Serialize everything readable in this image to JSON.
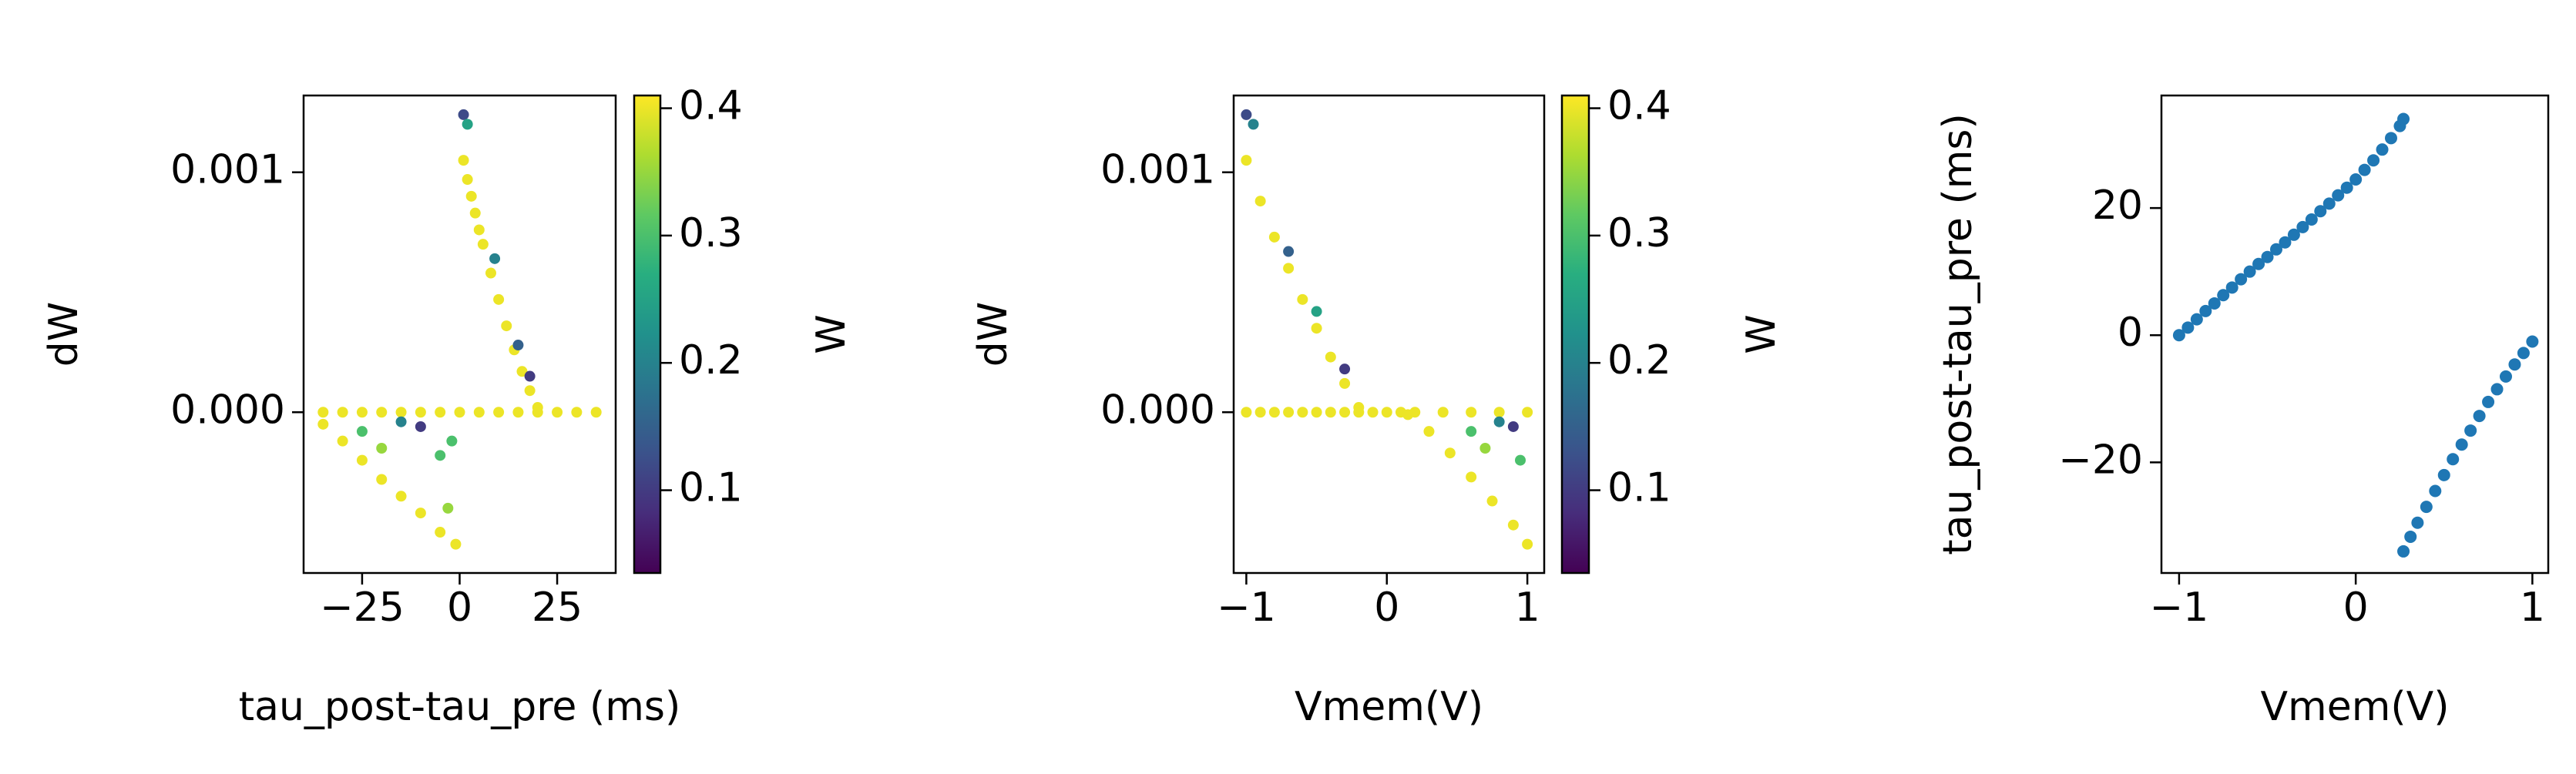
{
  "chart_data": [
    {
      "type": "scatter",
      "xlabel": "tau_post-tau_pre (ms)",
      "ylabel": "dW",
      "xlim": [
        -40,
        40
      ],
      "ylim": [
        -0.00067,
        0.00132
      ],
      "xticks": [
        {
          "value": -25,
          "label": "−25"
        },
        0,
        25
      ],
      "yticks": [
        {
          "value": 0,
          "label": "0.000"
        },
        {
          "value": 0.001,
          "label": "0.001"
        }
      ],
      "x": [
        -35,
        -25,
        -15,
        -5,
        5,
        15,
        25,
        35,
        -30,
        -20,
        -10,
        0,
        10,
        20,
        30,
        1,
        2,
        3,
        4,
        5,
        6,
        8,
        10,
        12,
        14,
        16,
        18,
        20,
        -35,
        -30,
        -25,
        -20,
        -15,
        -10,
        -5,
        -1,
        1,
        2,
        9,
        15,
        18,
        -25,
        -15,
        -10,
        -5,
        -2,
        -20,
        -3
      ],
      "y": [
        0,
        0,
        0,
        0,
        0,
        0,
        0,
        0,
        0,
        0,
        0,
        0,
        0,
        0,
        0,
        0.00105,
        0.00097,
        0.0009,
        0.00083,
        0.00076,
        0.0007,
        0.00058,
        0.00047,
        0.00036,
        0.00026,
        0.00017,
        9e-05,
        2e-05,
        -5e-05,
        -0.00012,
        -0.0002,
        -0.00028,
        -0.00035,
        -0.00042,
        -0.0005,
        -0.00055,
        0.00124,
        0.0012,
        0.00064,
        0.00028,
        0.00015,
        -8e-05,
        -4e-05,
        -6e-05,
        -0.00018,
        -0.00012,
        -0.00015,
        -0.0004
      ],
      "c": [
        0.4,
        0.4,
        0.4,
        0.4,
        0.4,
        0.4,
        0.4,
        0.4,
        0.4,
        0.4,
        0.4,
        0.4,
        0.4,
        0.4,
        0.4,
        0.4,
        0.4,
        0.4,
        0.4,
        0.4,
        0.4,
        0.4,
        0.4,
        0.4,
        0.4,
        0.4,
        0.4,
        0.4,
        0.4,
        0.4,
        0.4,
        0.4,
        0.4,
        0.4,
        0.4,
        0.4,
        0.12,
        0.25,
        0.2,
        0.15,
        0.1,
        0.3,
        0.2,
        0.1,
        0.3,
        0.3,
        0.35,
        0.35
      ],
      "colorbar": {
        "label": "W",
        "colormap": "viridis",
        "clim": [
          0.035,
          0.41
        ],
        "ticks": [
          0.1,
          0.2,
          0.3,
          0.4
        ]
      }
    },
    {
      "type": "scatter",
      "xlabel": "Vmem(V)",
      "ylabel": "dW",
      "xlim": [
        -1.09,
        1.12
      ],
      "ylim": [
        -0.00067,
        0.00132
      ],
      "xticks": [
        {
          "value": -1,
          "label": "−1"
        },
        0,
        1
      ],
      "yticks": [
        {
          "value": 0,
          "label": "0.000"
        },
        {
          "value": 0.001,
          "label": "0.001"
        }
      ],
      "x": [
        -1,
        -0.8,
        -0.6,
        -0.4,
        -0.2,
        0,
        0.2,
        0.4,
        0.6,
        0.8,
        1,
        -0.9,
        -0.7,
        -0.5,
        -0.3,
        -0.1,
        0.1,
        -1,
        -0.9,
        -0.8,
        -0.7,
        -0.6,
        -0.5,
        -0.4,
        -0.3,
        -0.2,
        0.15,
        0.3,
        0.45,
        0.6,
        0.75,
        0.9,
        1,
        -1,
        -0.95,
        -0.7,
        -0.5,
        -0.3,
        0.6,
        0.8,
        0.9,
        0.7,
        0.95
      ],
      "y": [
        0,
        0,
        0,
        0,
        0,
        0,
        0,
        0,
        0,
        0,
        0,
        0,
        0,
        0,
        0,
        0,
        0,
        0.00105,
        0.00088,
        0.00073,
        0.0006,
        0.00047,
        0.00035,
        0.00023,
        0.00012,
        2e-05,
        -1e-05,
        -8e-05,
        -0.00017,
        -0.00027,
        -0.00037,
        -0.00047,
        -0.00055,
        0.00124,
        0.0012,
        0.00067,
        0.00042,
        0.00018,
        -8e-05,
        -4e-05,
        -6e-05,
        -0.00015,
        -0.0002
      ],
      "c": [
        0.4,
        0.4,
        0.4,
        0.4,
        0.4,
        0.4,
        0.4,
        0.4,
        0.4,
        0.4,
        0.4,
        0.4,
        0.4,
        0.4,
        0.4,
        0.4,
        0.4,
        0.4,
        0.4,
        0.4,
        0.4,
        0.4,
        0.4,
        0.4,
        0.4,
        0.4,
        0.4,
        0.4,
        0.4,
        0.4,
        0.4,
        0.4,
        0.4,
        0.12,
        0.2,
        0.15,
        0.25,
        0.1,
        0.3,
        0.2,
        0.1,
        0.35,
        0.3
      ],
      "colorbar": {
        "label": "W",
        "colormap": "viridis",
        "clim": [
          0.035,
          0.41
        ],
        "ticks": [
          0.1,
          0.2,
          0.3,
          0.4
        ]
      }
    },
    {
      "type": "scatter",
      "xlabel": "Vmem(V)",
      "ylabel": "tau_post-tau_pre (ms)",
      "xlim": [
        -1.1,
        1.09
      ],
      "ylim": [
        -37.4,
        37.7
      ],
      "xticks": [
        {
          "value": -1,
          "label": "−1"
        },
        0,
        1
      ],
      "yticks": [
        {
          "value": -20,
          "label": "−20"
        },
        0,
        20
      ],
      "color": "#1f77b4",
      "x": [
        -1,
        -0.95,
        -0.9,
        -0.85,
        -0.8,
        -0.75,
        -0.7,
        -0.65,
        -0.6,
        -0.55,
        -0.5,
        -0.45,
        -0.4,
        -0.35,
        -0.3,
        -0.25,
        -0.2,
        -0.15,
        -0.1,
        -0.05,
        0,
        0.05,
        0.1,
        0.15,
        0.2,
        0.25,
        0.27,
        0.27,
        0.31,
        0.35,
        0.4,
        0.45,
        0.5,
        0.55,
        0.6,
        0.65,
        0.7,
        0.75,
        0.8,
        0.85,
        0.9,
        0.95,
        1
      ],
      "y": [
        0,
        1.2,
        2.5,
        3.8,
        5,
        6.3,
        7.5,
        8.8,
        10,
        11.2,
        12.3,
        13.5,
        14.6,
        15.8,
        17,
        18.2,
        19.5,
        20.7,
        22,
        23.2,
        24.5,
        26,
        27.5,
        29.2,
        31,
        32.9,
        34,
        -34,
        -31.7,
        -29.5,
        -27,
        -24.5,
        -22,
        -19.5,
        -17.2,
        -15,
        -12.7,
        -10.5,
        -8.5,
        -6.5,
        -4.6,
        -2.8,
        -1
      ]
    }
  ]
}
